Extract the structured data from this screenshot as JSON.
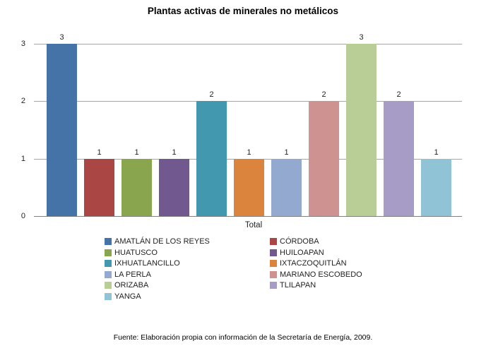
{
  "title": "Plantas activas de minerales no metálicos",
  "footer": "Fuente: Elaboración propia con información de la Secretaría de Energía, 2009.",
  "colors": {
    "gridline": "#a6a6a6",
    "axis_line": "#808080",
    "text": "#1f1f1f"
  },
  "chart_data": {
    "type": "bar",
    "title": "Plantas activas de minerales no metálicos",
    "xlabel": "Total",
    "ylabel": "",
    "ylim": [
      0,
      3
    ],
    "yticks": [
      0,
      1,
      2,
      3
    ],
    "grid": true,
    "data_labels": true,
    "legend_position": "bottom",
    "categories": [
      "Total"
    ],
    "series": [
      {
        "name": "AMATLÁN DE LOS REYES",
        "values": [
          3
        ],
        "color": "#4572A7"
      },
      {
        "name": "CÓRDOBA",
        "values": [
          1
        ],
        "color": "#AA4643"
      },
      {
        "name": "HUATUSCO",
        "values": [
          1
        ],
        "color": "#89A54E"
      },
      {
        "name": "HUILOAPAN",
        "values": [
          1
        ],
        "color": "#71588F"
      },
      {
        "name": "IXHUATLANCILLO",
        "values": [
          2
        ],
        "color": "#4198AF"
      },
      {
        "name": "IXTACZOQUITLÁN",
        "values": [
          1
        ],
        "color": "#DB843D"
      },
      {
        "name": "LA PERLA",
        "values": [
          1
        ],
        "color": "#93A9D0"
      },
      {
        "name": "MARIANO ESCOBEDO",
        "values": [
          2
        ],
        "color": "#CE9290"
      },
      {
        "name": "ORIZABA",
        "values": [
          3
        ],
        "color": "#B9CD96"
      },
      {
        "name": "TLILAPAN",
        "values": [
          2
        ],
        "color": "#A69CC5"
      },
      {
        "name": "YANGA",
        "values": [
          1
        ],
        "color": "#91C3D7"
      }
    ],
    "source_note": "Fuente: Elaboración propia con información de la Secretaría de Energía, 2009."
  }
}
